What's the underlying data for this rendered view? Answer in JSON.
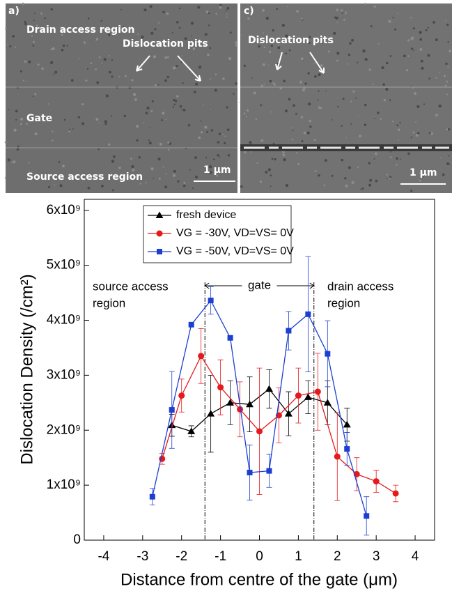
{
  "panels": [
    {
      "label": "a)",
      "annotations": [
        "Drain access region",
        "Dislocation pits",
        "Gate",
        "Source access region"
      ],
      "scale_bar": "1 μm"
    },
    {
      "label": "c)",
      "annotations": [
        "Dislocation pits"
      ],
      "scale_bar": "1 μm"
    }
  ],
  "chart_data": {
    "type": "line",
    "xlabel": "Distance from centre of the gate (μm)",
    "ylabel": "Dislocation Density (/cm²)",
    "xlim": [
      -4.5,
      4.5
    ],
    "xticks": [
      -4,
      -3,
      -2,
      -1,
      0,
      1,
      2,
      3,
      4
    ],
    "ylim": [
      0,
      6200000000
    ],
    "yticks": [
      0,
      {
        "value": 1000000000,
        "label": "1x10⁹"
      },
      {
        "value": 2000000000,
        "label": "2x10⁹"
      },
      {
        "value": 3000000000,
        "label": "3x10⁹"
      },
      {
        "value": 4000000000,
        "label": "4x10⁹"
      },
      {
        "value": 5000000000,
        "label": "5x10⁹"
      },
      {
        "value": 6000000000,
        "label": "6x10⁹"
      }
    ],
    "legend": "upper-left",
    "region_lines": [
      -1.4,
      1.4
    ],
    "annotations": [
      "source access",
      "region",
      "gate",
      "drain access",
      "region"
    ],
    "series": [
      {
        "name": "fresh device",
        "color": "#000000",
        "marker": "triangle",
        "x": [
          -2.25,
          -1.75,
          -1.25,
          -0.75,
          -0.25,
          0.25,
          0.75,
          1.25,
          1.75,
          2.25
        ],
        "values": [
          2090000000,
          1980000000,
          2300000000,
          2500000000,
          2470000000,
          2750000000,
          2300000000,
          2600000000,
          2500000000,
          2100000000
        ],
        "errors": [
          200000000,
          100000000,
          700000000,
          400000000,
          500000000,
          350000000,
          400000000,
          300000000,
          400000000,
          300000000
        ]
      },
      {
        "name": "VG = -30V, VD=VS= 0V",
        "color": "#e41a1c",
        "marker": "circle",
        "x": [
          -2.5,
          -2.0,
          -1.5,
          -1.0,
          -0.5,
          0,
          0.5,
          1.0,
          1.5,
          2.0,
          2.5,
          3.0,
          3.5
        ],
        "values": [
          1480000000,
          2630000000,
          3350000000,
          2780000000,
          2380000000,
          1980000000,
          2270000000,
          2630000000,
          2700000000,
          1520000000,
          1200000000,
          1070000000,
          850000000
        ],
        "errors": [
          100000000,
          300000000,
          500000000,
          500000000,
          500000000,
          1150000000,
          500000000,
          500000000,
          700000000,
          800000000,
          300000000,
          200000000,
          150000000
        ]
      },
      {
        "name": "VG = -50V, VD=VS= 0V",
        "color": "#1c3fd0",
        "marker": "square",
        "x": [
          -2.75,
          -2.25,
          -1.75,
          -1.25,
          -0.75,
          -0.25,
          0.25,
          0.75,
          1.25,
          1.75,
          2.25,
          2.75
        ],
        "values": [
          790000000,
          2370000000,
          3920000000,
          4360000000,
          3680000000,
          1230000000,
          1260000000,
          3810000000,
          4110000000,
          3390000000,
          1660000000,
          440000000
        ],
        "errors": [
          150000000,
          700000000,
          0,
          250000000,
          0,
          500000000,
          300000000,
          350000000,
          1050000000,
          600000000,
          300000000,
          350000000
        ]
      }
    ]
  }
}
